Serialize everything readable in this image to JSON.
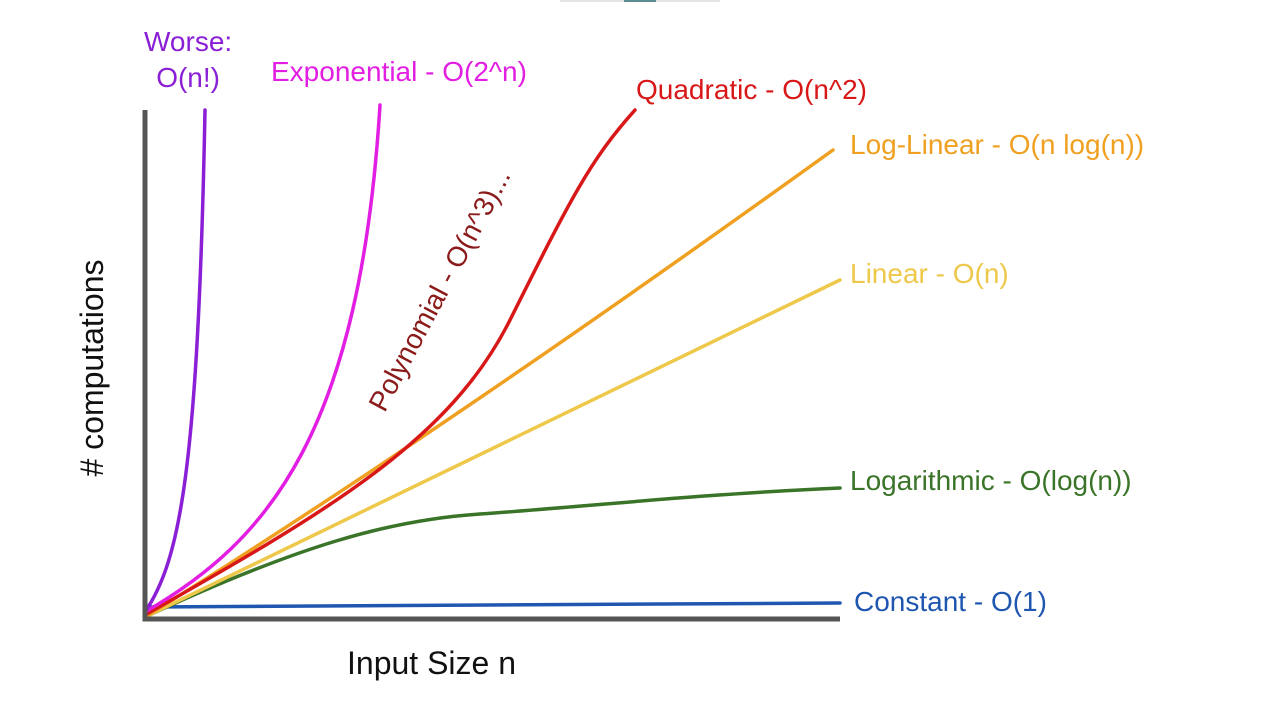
{
  "axes": {
    "y_label": "# computations",
    "x_label": "Input Size n"
  },
  "colors": {
    "axis": "#555555",
    "factorial": "#8a1fd6",
    "exponential": "#e21ee2",
    "polynomial": "#8b1a1a",
    "quadratic": "#d81818",
    "log_linear": "#f0a020",
    "linear": "#eec84a",
    "logarithmic": "#3a7428",
    "constant": "#1e56b0"
  },
  "curves": [
    {
      "key": "factorial",
      "label_line1": "Worse:",
      "label_line2": "O(n!)"
    },
    {
      "key": "exponential",
      "label": "Exponential - O(2^n)"
    },
    {
      "key": "polynomial",
      "label": "Polynomial - O(n^3)..."
    },
    {
      "key": "quadratic",
      "label": "Quadratic - O(n^2)"
    },
    {
      "key": "log_linear",
      "label": "Log-Linear - O(n log(n))"
    },
    {
      "key": "linear",
      "label": "Linear - O(n)"
    },
    {
      "key": "logarithmic",
      "label": "Logarithmic - O(log(n))"
    },
    {
      "key": "constant",
      "label": "Constant - O(1)"
    }
  ]
}
